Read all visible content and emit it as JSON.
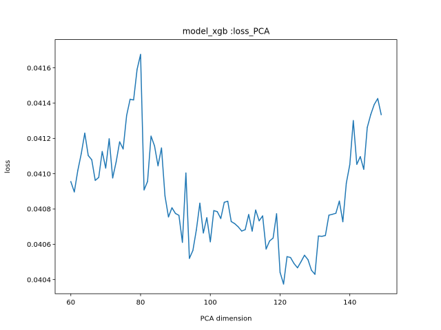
{
  "chart_data": {
    "type": "line",
    "title": "model_xgb :loss_PCA",
    "xlabel": "PCA dimension",
    "ylabel": "loss",
    "xlim": [
      55.5,
      153.5
    ],
    "ylim": [
      0.04032,
      0.04176
    ],
    "xticks": [
      60,
      80,
      100,
      120,
      140
    ],
    "xtick_labels": [
      "60",
      "80",
      "100",
      "120",
      "140"
    ],
    "yticks": [
      0.0404,
      0.0406,
      0.0408,
      0.041,
      0.0412,
      0.0414,
      0.0416
    ],
    "ytick_labels": [
      "0.0404",
      "0.0406",
      "0.0408",
      "0.0410",
      "0.0412",
      "0.0414",
      "0.0416"
    ],
    "grid": false,
    "line_color": "#1f77b4",
    "series": [
      {
        "x": [
          60,
          61,
          62,
          63,
          64,
          65,
          66,
          67,
          68,
          69,
          70,
          71,
          72,
          73,
          74,
          75,
          76,
          77,
          78,
          79,
          80,
          81,
          82,
          83,
          84,
          85,
          86,
          87,
          88,
          89,
          90,
          91,
          92,
          93,
          94,
          95,
          96,
          97,
          98,
          99,
          100,
          101,
          102,
          103,
          104,
          105,
          106,
          107,
          108,
          109,
          110,
          111,
          112,
          113,
          114,
          115,
          116,
          117,
          118,
          119,
          120,
          121,
          122,
          123,
          124,
          125,
          126,
          127,
          128,
          129,
          130,
          131,
          132,
          133,
          134,
          135,
          136,
          137,
          138,
          139,
          140,
          141,
          142,
          143,
          144,
          145,
          146,
          147,
          148,
          149
        ],
        "y": [
          0.040955,
          0.040897,
          0.041018,
          0.041114,
          0.04123,
          0.041103,
          0.041079,
          0.040962,
          0.040979,
          0.041126,
          0.041032,
          0.041198,
          0.040976,
          0.041067,
          0.041181,
          0.04114,
          0.04133,
          0.041422,
          0.041418,
          0.041591,
          0.041676,
          0.040908,
          0.040956,
          0.041213,
          0.041158,
          0.041045,
          0.041146,
          0.040874,
          0.040755,
          0.040807,
          0.040775,
          0.040764,
          0.040611,
          0.041004,
          0.04052,
          0.040565,
          0.040682,
          0.040833,
          0.040664,
          0.040751,
          0.040614,
          0.040791,
          0.040785,
          0.040746,
          0.040838,
          0.040844,
          0.040729,
          0.040717,
          0.040699,
          0.040675,
          0.040683,
          0.040769,
          0.040675,
          0.040794,
          0.040733,
          0.040761,
          0.040573,
          0.040619,
          0.040635,
          0.040773,
          0.040441,
          0.040375,
          0.04053,
          0.040525,
          0.040491,
          0.040467,
          0.040501,
          0.040538,
          0.040513,
          0.040453,
          0.04043,
          0.040647,
          0.040645,
          0.04065,
          0.040765,
          0.04077,
          0.040776,
          0.040845,
          0.040728,
          0.040947,
          0.041052,
          0.041301,
          0.041053,
          0.041097,
          0.041025,
          0.041262,
          0.041335,
          0.041392,
          0.041426,
          0.041335
        ]
      }
    ]
  }
}
